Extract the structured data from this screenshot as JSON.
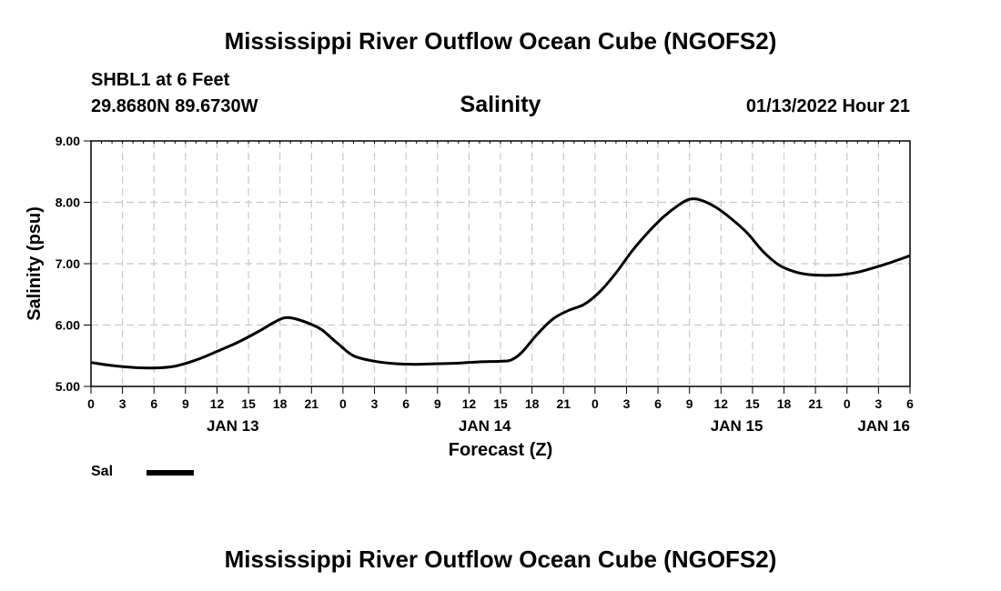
{
  "header": {
    "main_title": "Mississippi River Outflow Ocean Cube (NGOFS2)",
    "station": "SHBL1 at 6 Feet",
    "coordinates": "29.8680N  89.6730W",
    "plot_title": "Salinity",
    "timestamp": "01/13/2022 Hour 21"
  },
  "footer": {
    "title": "Mississippi River Outflow Ocean Cube (NGOFS2)"
  },
  "legend": {
    "label": "Sal",
    "color": "#000000"
  },
  "chart_data": {
    "type": "line",
    "title": "Salinity",
    "xlabel": "Forecast (Z)",
    "ylabel": "Salinity (psu)",
    "ylim": [
      5.0,
      9.0
    ],
    "yticks": [
      "5.00",
      "6.00",
      "7.00",
      "8.00",
      "9.00"
    ],
    "xlim_hours": [
      0,
      78
    ],
    "xticks": [
      "0",
      "3",
      "6",
      "9",
      "12",
      "15",
      "18",
      "21",
      "0",
      "3",
      "6",
      "9",
      "12",
      "15",
      "18",
      "21",
      "0",
      "3",
      "6",
      "9",
      "12",
      "15",
      "18",
      "21",
      "0",
      "3",
      "6"
    ],
    "date_labels": [
      {
        "label": "JAN 13",
        "hour": 13.5
      },
      {
        "label": "JAN 14",
        "hour": 37.5
      },
      {
        "label": "JAN 15",
        "hour": 61.5
      },
      {
        "label": "JAN 16",
        "hour": 75.5
      }
    ],
    "grid": true,
    "series": [
      {
        "name": "Sal",
        "color": "#000000",
        "points": [
          [
            0,
            5.39
          ],
          [
            2,
            5.34
          ],
          [
            4,
            5.31
          ],
          [
            6,
            5.3
          ],
          [
            8,
            5.33
          ],
          [
            10,
            5.43
          ],
          [
            12,
            5.57
          ],
          [
            14,
            5.72
          ],
          [
            16,
            5.9
          ],
          [
            17.5,
            6.05
          ],
          [
            18.5,
            6.12
          ],
          [
            19.5,
            6.1
          ],
          [
            21,
            6.01
          ],
          [
            22,
            5.92
          ],
          [
            23.5,
            5.7
          ],
          [
            25,
            5.5
          ],
          [
            27,
            5.41
          ],
          [
            29,
            5.37
          ],
          [
            31,
            5.36
          ],
          [
            33,
            5.37
          ],
          [
            35,
            5.38
          ],
          [
            37,
            5.4
          ],
          [
            39,
            5.41
          ],
          [
            40,
            5.43
          ],
          [
            41,
            5.55
          ],
          [
            42.5,
            5.85
          ],
          [
            44,
            6.1
          ],
          [
            45.5,
            6.24
          ],
          [
            47,
            6.34
          ],
          [
            48.5,
            6.55
          ],
          [
            50,
            6.85
          ],
          [
            51.5,
            7.2
          ],
          [
            53,
            7.5
          ],
          [
            54.5,
            7.76
          ],
          [
            56,
            7.96
          ],
          [
            57,
            8.05
          ],
          [
            58,
            8.04
          ],
          [
            59.5,
            7.92
          ],
          [
            61,
            7.73
          ],
          [
            62.5,
            7.5
          ],
          [
            64,
            7.2
          ],
          [
            65.5,
            6.98
          ],
          [
            67,
            6.87
          ],
          [
            68.5,
            6.82
          ],
          [
            70,
            6.81
          ],
          [
            71.5,
            6.82
          ],
          [
            73,
            6.86
          ],
          [
            74.5,
            6.93
          ],
          [
            76,
            7.01
          ],
          [
            78,
            7.13
          ]
        ]
      }
    ]
  }
}
